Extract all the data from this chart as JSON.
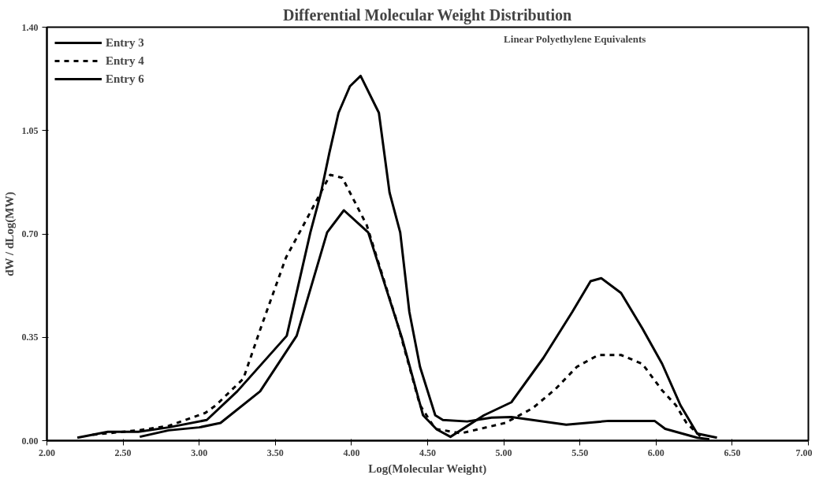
{
  "chart_data": {
    "type": "line",
    "title": "Differential Molecular Weight Distribution",
    "xlabel": "Log(Molecular Weight)",
    "ylabel": "dW / dLog(MW)",
    "annotations": [
      "Linear Polyethylene Equivalents"
    ],
    "xlim": [
      2.0,
      7.0
    ],
    "ylim": [
      0.0,
      1.4
    ],
    "xticks": [
      {
        "value": 2.0,
        "label": "2.00"
      },
      {
        "value": 2.5,
        "label": "2.50"
      },
      {
        "value": 3.0,
        "label": "3.00"
      },
      {
        "value": 3.5,
        "label": "3.50"
      },
      {
        "value": 4.0,
        "label": "4.00"
      },
      {
        "value": 4.5,
        "label": "4.50"
      },
      {
        "value": 5.0,
        "label": "5.00"
      },
      {
        "value": 5.5,
        "label": "5.50"
      },
      {
        "value": 6.0,
        "label": "6.00"
      },
      {
        "value": 6.5,
        "label": "6.50"
      },
      {
        "value": 7.0,
        "label": "7.00"
      }
    ],
    "yticks": [
      {
        "value": 0.0,
        "label": "0.00"
      },
      {
        "value": 0.35,
        "label": "0.35"
      },
      {
        "value": 0.7,
        "label": "0.70"
      },
      {
        "value": 1.05,
        "label": "1.05"
      },
      {
        "value": 1.4,
        "label": "1.40"
      }
    ],
    "grid": false,
    "legend": "top left",
    "series": [
      {
        "name": "Entry 3",
        "color": "#000000",
        "line_style": "solid",
        "x": [
          2.2,
          2.4,
          2.6,
          2.8,
          3.05,
          3.25,
          3.575,
          3.73,
          3.8,
          3.855,
          3.915,
          3.99,
          4.06,
          4.18,
          4.25,
          4.32,
          4.38,
          4.45,
          4.55,
          4.6,
          4.76,
          4.92,
          5.05,
          5.41,
          5.69,
          5.99,
          6.06,
          6.27,
          6.35
        ],
        "values": [
          0.01,
          0.03,
          0.03,
          0.045,
          0.07,
          0.167,
          0.355,
          0.705,
          0.84,
          0.975,
          1.11,
          1.2,
          1.235,
          1.11,
          0.84,
          0.705,
          0.436,
          0.25,
          0.086,
          0.07,
          0.065,
          0.078,
          0.08,
          0.054,
          0.067,
          0.067,
          0.04,
          0.01,
          0.005
        ]
      },
      {
        "name": "Entry 4",
        "color": "#000000",
        "line_style": "dashed",
        "x": [
          2.3,
          2.6,
          2.8,
          3.04,
          3.11,
          3.29,
          3.41,
          3.57,
          3.68,
          3.86,
          3.94,
          4.1,
          4.3,
          4.45,
          4.55,
          4.72,
          5.01,
          5.19,
          5.34,
          5.48,
          5.62,
          5.77,
          5.91,
          6.04,
          6.13,
          6.2,
          6.3
        ],
        "values": [
          0.02,
          0.035,
          0.05,
          0.094,
          0.12,
          0.21,
          0.39,
          0.62,
          0.725,
          0.9,
          0.89,
          0.73,
          0.4,
          0.12,
          0.04,
          0.025,
          0.06,
          0.11,
          0.175,
          0.25,
          0.29,
          0.29,
          0.26,
          0.17,
          0.12,
          0.06,
          0.01
        ]
      },
      {
        "name": "Entry 6",
        "color": "#000000",
        "line_style": "solid",
        "x": [
          2.61,
          2.8,
          3.0,
          3.14,
          3.4,
          3.64,
          3.84,
          3.95,
          4.11,
          4.33,
          4.47,
          4.56,
          4.65,
          4.87,
          5.05,
          5.26,
          5.45,
          5.57,
          5.64,
          5.77,
          5.91,
          6.04,
          6.16,
          6.27,
          6.4
        ],
        "values": [
          0.013,
          0.035,
          0.045,
          0.06,
          0.167,
          0.355,
          0.705,
          0.78,
          0.705,
          0.35,
          0.086,
          0.038,
          0.013,
          0.086,
          0.13,
          0.28,
          0.436,
          0.54,
          0.55,
          0.5,
          0.38,
          0.26,
          0.12,
          0.024,
          0.01
        ]
      }
    ]
  }
}
